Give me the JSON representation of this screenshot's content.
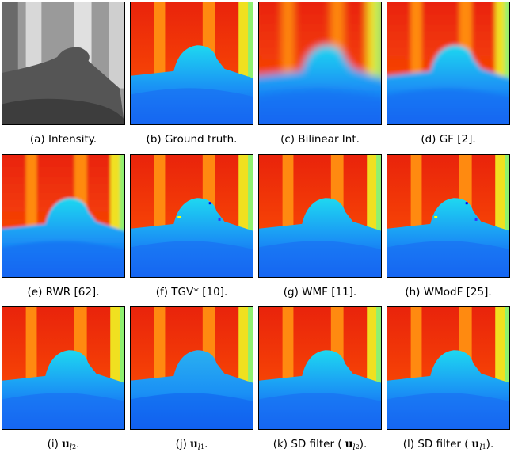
{
  "panels": [
    {
      "caption": {
        "prefix": "(a) Intensity."
      }
    },
    {
      "caption": {
        "prefix": "(b) Ground truth."
      }
    },
    {
      "caption": {
        "prefix": "(c) Bilinear Int."
      }
    },
    {
      "caption": {
        "prefix": "(d) GF [2]."
      }
    },
    {
      "caption": {
        "prefix": "(e) RWR [62]."
      }
    },
    {
      "caption": {
        "prefix": "(f) TGV* [10]."
      }
    },
    {
      "caption": {
        "prefix": "(g) WMF [11]."
      }
    },
    {
      "caption": {
        "prefix": "(h) WModF [25]."
      }
    },
    {
      "caption": {
        "prefix": "(i)",
        "math": "u",
        "sub": "l",
        "subsub": "2",
        "suffix": "."
      }
    },
    {
      "caption": {
        "prefix": "(j)",
        "math": "u",
        "sub": "l",
        "subsub": "1",
        "suffix": "."
      }
    },
    {
      "caption": {
        "prefix": "(k) SD filter (",
        "math": "u",
        "sub": "l",
        "subsub": "2",
        "suffix": ")."
      }
    },
    {
      "caption": {
        "prefix": "(l) SD filter (",
        "math": "u",
        "sub": "l",
        "subsub": "1",
        "suffix": ")."
      }
    }
  ]
}
